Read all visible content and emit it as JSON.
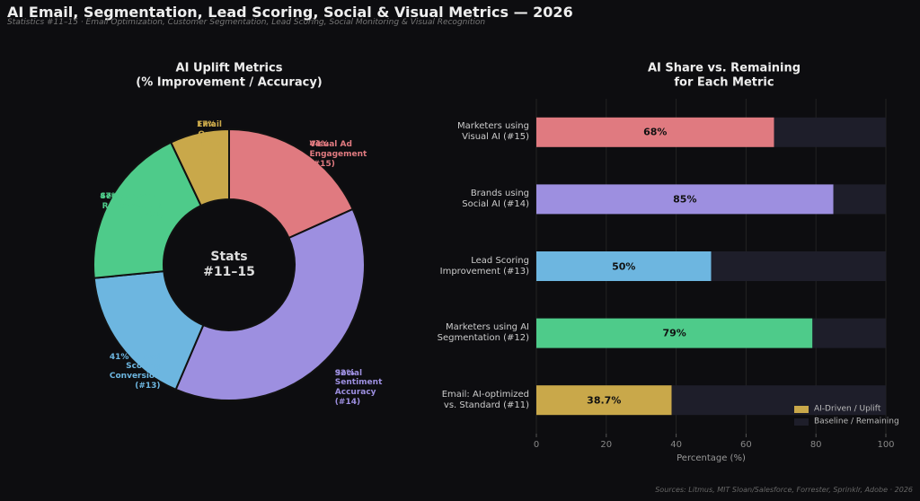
{
  "title": "AI Email, Segmentation, Lead Scoring, Social & Visual Metrics — 2026",
  "subtitle": "Statistics #11–15 · Email Optimization, Customer Segmentation, Lead Scoring, Social Monitoring & Visual Recognition",
  "source": "Sources: Litmus, MIT Sloan/Salesforce, Forrester, Sprinklr, Adobe · 2026",
  "chart_data": [
    {
      "type": "donut",
      "title": "AI Uplift Metrics\n(% Improvement / Accuracy)",
      "center_label": "Stats\n#11–15",
      "categories": [
        "Visual Ad\nEngagement (#15)",
        "Social Sentiment\nAccuracy (#14)",
        "Lead Scoring\nConversion (#13)",
        "Segmentation\nResponse Lift (#12)",
        "Email Open\nRate Lift (#11)"
      ],
      "values": [
        44,
        92,
        41,
        47,
        17
      ],
      "value_labels": [
        "44%",
        "92%",
        "41%",
        "47%",
        "17%"
      ],
      "colors": [
        "#e07a80",
        "#9d8fe0",
        "#6db6e0",
        "#4ecb8a",
        "#c9a84a"
      ]
    },
    {
      "type": "stacked-barh",
      "title": "AI Share vs. Remaining\nfor Each Metric",
      "xlabel": "Percentage (%)",
      "categories": [
        "Marketers using\nVisual AI (#15)",
        "Brands using\nSocial AI (#14)",
        "Lead Scoring\nImprovement (#13)",
        "Marketers using AI\nSegmentation (#12)",
        "Email: AI-optimized\nvs. Standard (#11)"
      ],
      "series": [
        {
          "name": "AI-Driven / Uplift",
          "color": "#c9a84a",
          "colors": [
            "#e07a80",
            "#9d8fe0",
            "#6db6e0",
            "#4ecb8a",
            "#c9a84a"
          ],
          "values": [
            68,
            85,
            50,
            79,
            38.7
          ],
          "value_labels": [
            "68%",
            "85%",
            "50%",
            "79%",
            "38.7%"
          ]
        },
        {
          "name": "Baseline / Remaining",
          "color": "#1e1e2a",
          "values": [
            32,
            15,
            50,
            21,
            61.3
          ]
        }
      ],
      "xlim": [
        0,
        100
      ],
      "xticks": [
        0,
        20,
        40,
        60,
        80,
        100
      ],
      "grid": true,
      "legend": "lower right"
    }
  ]
}
